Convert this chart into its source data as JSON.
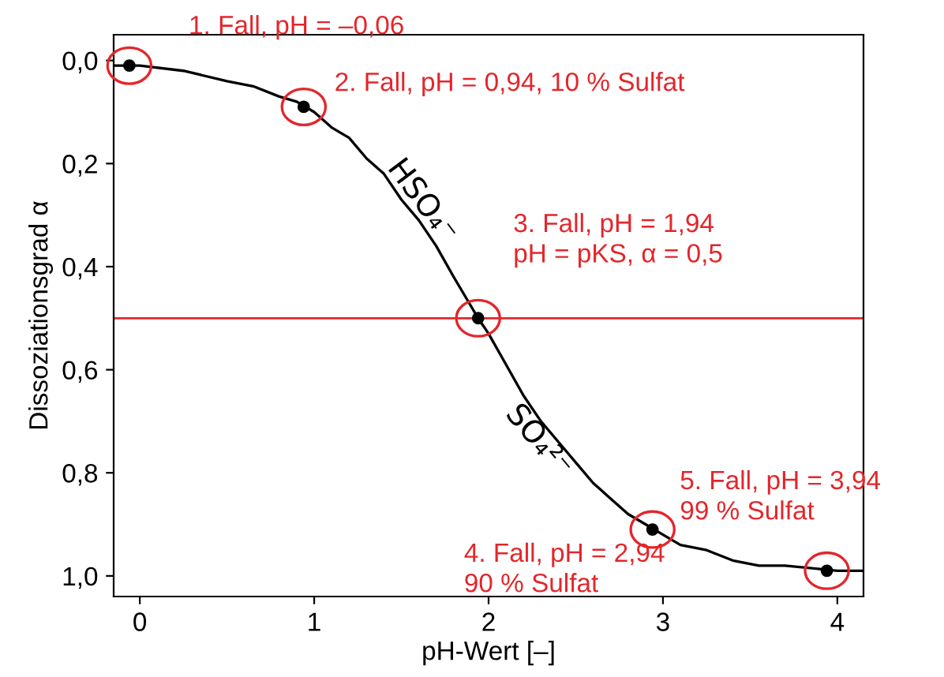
{
  "chart_data": {
    "type": "line",
    "xlabel": "pH-Wert [–]",
    "ylabel": "Dissoziationsgrad α",
    "xlim": [
      -0.15,
      4.15
    ],
    "xticks": [
      0,
      1,
      2,
      3,
      4
    ],
    "ylim": [
      1.04,
      -0.05
    ],
    "yticks": [
      {
        "value": 0,
        "label": "0,0"
      },
      {
        "value": 0.2,
        "label": "0,2"
      },
      {
        "value": 0.4,
        "label": "0,4"
      },
      {
        "value": 0.6,
        "label": "0,6"
      },
      {
        "value": 0.8,
        "label": "0,8"
      },
      {
        "value": 1.0,
        "label": "1,0"
      }
    ],
    "grid": false,
    "legend": false,
    "series": [
      {
        "color": "#000000",
        "marker": "none",
        "line_style": "solid",
        "x": [
          -0.15,
          0,
          0.25,
          0.5,
          0.65,
          0.8,
          0.9,
          1.0,
          1.1,
          1.2,
          1.3,
          1.4,
          1.5,
          1.6,
          1.7,
          1.8,
          1.94,
          2.0,
          2.1,
          2.2,
          2.3,
          2.4,
          2.5,
          2.6,
          2.7,
          2.8,
          2.9,
          3.0,
          3.1,
          3.25,
          3.4,
          3.55,
          3.7,
          4.0,
          4.15
        ],
        "values": [
          0.01,
          0.01,
          0.02,
          0.04,
          0.05,
          0.07,
          0.08,
          0.1,
          0.13,
          0.15,
          0.19,
          0.22,
          0.27,
          0.31,
          0.36,
          0.42,
          0.5,
          0.53,
          0.59,
          0.65,
          0.7,
          0.74,
          0.78,
          0.82,
          0.85,
          0.88,
          0.9,
          0.92,
          0.94,
          0.95,
          0.97,
          0.98,
          0.98,
          0.99,
          0.99
        ]
      },
      {
        "type": "scatter",
        "color": "#000000",
        "marker": "circle",
        "x": [
          -0.06,
          0.94,
          1.94,
          2.94,
          3.94
        ],
        "values": [
          0.01,
          0.09,
          0.5,
          0.91,
          0.99
        ]
      }
    ],
    "ref_lines": [
      {
        "axis": "y",
        "value": 0.5,
        "color": "#e3262b"
      }
    ],
    "annotations": [
      "1. Fall, pH = –0,06",
      {
        "text": "2. Fall, pH = 0,94, 10 % Sulfat",
        "x": 0.94,
        "y": 0.09
      },
      {
        "text": "3. Fall, pH = 1,94\npH = pKS, α = 0,5",
        "x": 1.94,
        "y": 0.5
      },
      {
        "text": "4. Fall, pH = 2,94\n90 % Sulfat",
        "x": 2.94,
        "y": 0.91
      },
      "5. Fall, pH = 3,94\n99 % Sulfat",
      {
        "text": "HSO₄⁻",
        "x": 1.55,
        "y": 0.29
      },
      {
        "text": "SO₄²⁻",
        "x": 2.35,
        "y": 0.72
      }
    ]
  }
}
